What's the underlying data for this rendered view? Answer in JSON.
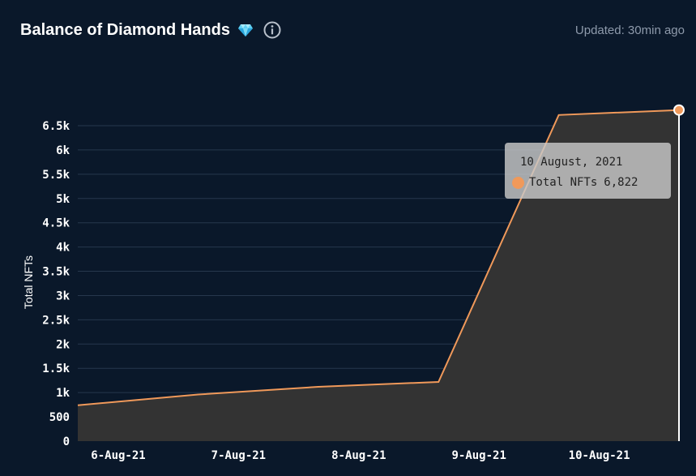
{
  "header": {
    "title": "Balance of Diamond Hands",
    "updated": "Updated: 30min ago",
    "diamond_icon": "diamond-icon",
    "info_icon": "info-circle-icon"
  },
  "colors": {
    "background": "#0a182a",
    "line": "#f0995a",
    "area": "#333333",
    "grid": "#26374d"
  },
  "chart_data": {
    "type": "area",
    "title": "Balance of Diamond Hands",
    "xlabel": "",
    "ylabel": "Total NFTs",
    "ylim": [
      0,
      6500
    ],
    "yticks": [
      {
        "v": 0,
        "label": "0"
      },
      {
        "v": 500,
        "label": "500"
      },
      {
        "v": 1000,
        "label": "1k"
      },
      {
        "v": 1500,
        "label": "1.5k"
      },
      {
        "v": 2000,
        "label": "2k"
      },
      {
        "v": 2500,
        "label": "2.5k"
      },
      {
        "v": 3000,
        "label": "3k"
      },
      {
        "v": 3500,
        "label": "3.5k"
      },
      {
        "v": 4000,
        "label": "4k"
      },
      {
        "v": 4500,
        "label": "4.5k"
      },
      {
        "v": 5000,
        "label": "5k"
      },
      {
        "v": 5500,
        "label": "5.5k"
      },
      {
        "v": 6000,
        "label": "6k"
      },
      {
        "v": 6500,
        "label": "6.5k"
      }
    ],
    "xticks": [
      "6-Aug-21",
      "7-Aug-21",
      "8-Aug-21",
      "9-Aug-21",
      "10-Aug-21"
    ],
    "series": [
      {
        "name": "Total NFTs",
        "points": [
          {
            "t": 0.0,
            "y": 740
          },
          {
            "t": 1.0,
            "y": 960
          },
          {
            "t": 2.0,
            "y": 1120
          },
          {
            "t": 3.0,
            "y": 1220
          },
          {
            "t": 4.0,
            "y": 6720
          },
          {
            "t": 5.0,
            "y": 6822
          }
        ]
      }
    ],
    "grid": true,
    "tooltip": {
      "date": "10 August, 2021",
      "label": "Total NFTs",
      "value": "6,822"
    }
  }
}
